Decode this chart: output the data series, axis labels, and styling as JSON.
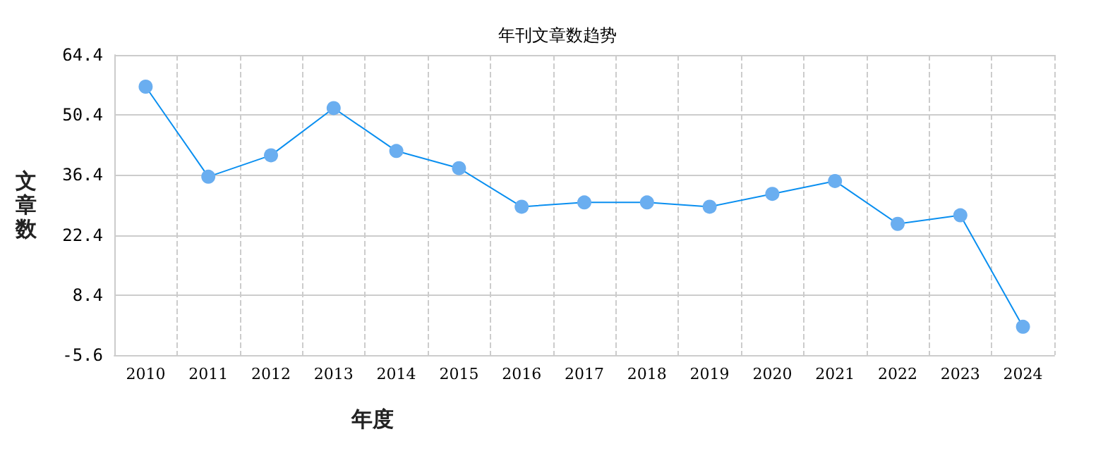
{
  "chart_data": {
    "type": "line",
    "title": "年刊文章数趋势",
    "xlabel": "年度",
    "ylabel": "文章数",
    "categories": [
      "2010",
      "2011",
      "2012",
      "2013",
      "2014",
      "2015",
      "2016",
      "2017",
      "2018",
      "2019",
      "2020",
      "2021",
      "2022",
      "2023",
      "2024"
    ],
    "series": [
      {
        "color": "#0a8ff0",
        "values": [
          57,
          36,
          41,
          52,
          42,
          38,
          29,
          30,
          30,
          29,
          32,
          35,
          25,
          27,
          1
        ]
      }
    ],
    "ylim": [
      -5.6,
      64.4
    ],
    "yticks": [
      -5.6,
      8.4,
      22.4,
      36.4,
      50.4,
      64.4
    ],
    "grid": true,
    "marker": "circle",
    "line_style": "solid"
  }
}
